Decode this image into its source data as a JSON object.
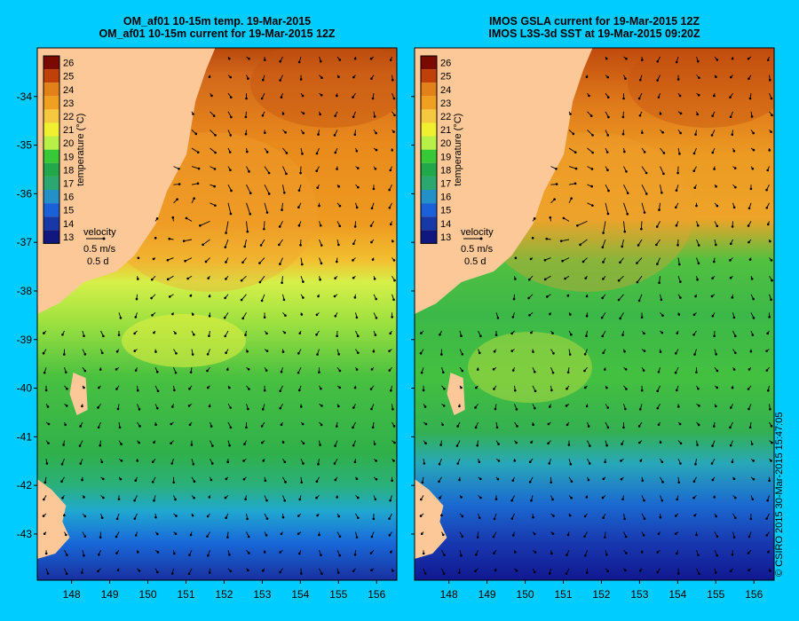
{
  "panels": [
    {
      "id": "left",
      "title_line1": "OM_af01 10-15m temp. 19-Mar-2015",
      "title_line2": "OM_af01 10-15m current for 19-Mar-2015 12Z",
      "velocity_label": "velocity",
      "velocity_scale": "0.5 m/s",
      "velocity_time": "0.5 d"
    },
    {
      "id": "right",
      "title_line1": "IMOS GSLA current for 19-Mar-2015 12Z",
      "title_line2": "IMOS L3S-3d SST at 19-Mar-2015 09:20Z",
      "velocity_label": "velocity",
      "velocity_scale": "0.5 m/s",
      "velocity_time": "0.5 d"
    }
  ],
  "colorbar": {
    "label": "temperature (°C)",
    "ticks": [
      "26",
      "25",
      "24",
      "23",
      "22",
      "21",
      "20",
      "19",
      "18",
      "17",
      "16",
      "15",
      "14",
      "13"
    ],
    "colors": [
      "#7a0a00",
      "#c0400a",
      "#e2801a",
      "#f0a020",
      "#f5c840",
      "#f0f030",
      "#b8f048",
      "#38c838",
      "#22a84a",
      "#2aa870",
      "#2490c8",
      "#1a60d8",
      "#1838a8",
      "#101880"
    ]
  },
  "axes": {
    "lon_ticks": [
      "148",
      "149",
      "150",
      "151",
      "152",
      "153",
      "154",
      "155",
      "156"
    ],
    "lat_ticks": [
      "-34",
      "-35",
      "-36",
      "-37",
      "-38",
      "-39",
      "-40",
      "-41",
      "-42",
      "-43"
    ]
  },
  "credit": "© CSIRO 2015  30-Mar-2015 15:47:05",
  "colors": {
    "background": "#00ccff",
    "land": "#fcc898"
  }
}
